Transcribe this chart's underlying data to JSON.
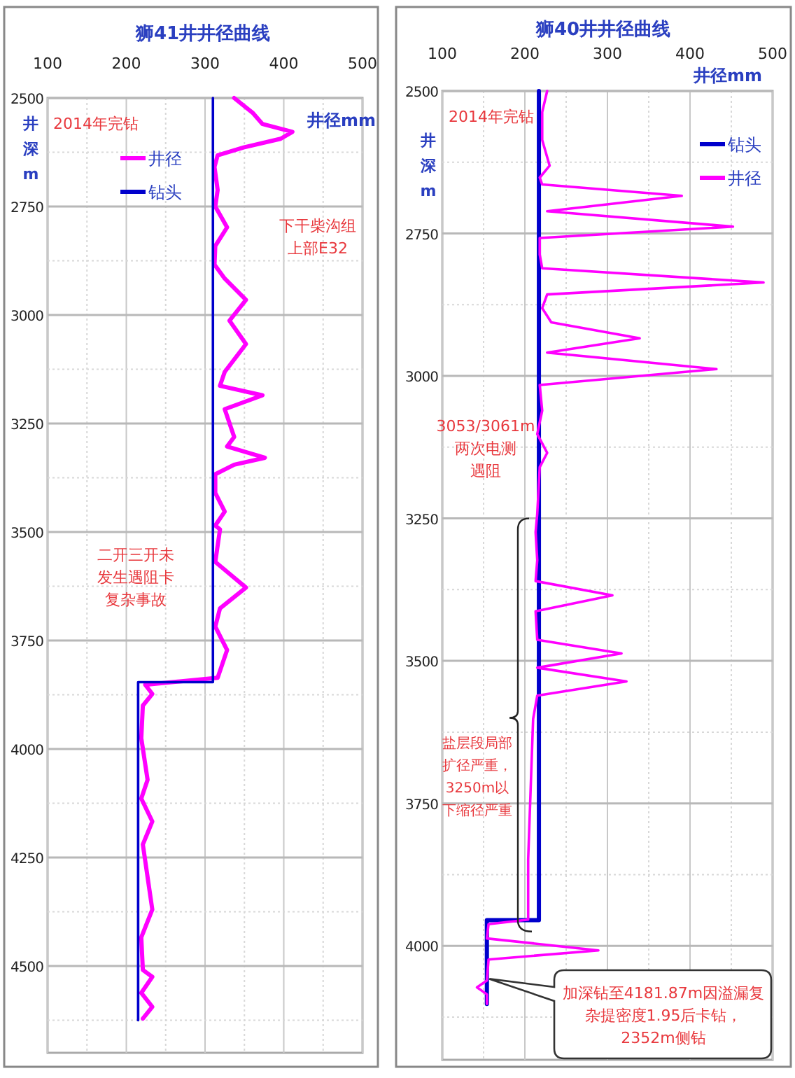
{
  "chart_data": [
    {
      "type": "line",
      "title": "狮41井井径曲线",
      "xlabel": "井径mm",
      "ylabel": "井深m",
      "xlim": [
        100,
        500
      ],
      "ylim": [
        4700,
        2500
      ],
      "xticks": [
        100,
        {
          "value": 150,
          "label": null
        },
        200,
        {
          "value": 250,
          "label": null
        },
        300,
        {
          "value": 350,
          "label": null
        },
        400,
        {
          "value": 450,
          "label": null
        },
        500
      ],
      "yticks": [
        2500,
        {
          "value": 2625,
          "label": null
        },
        2750,
        {
          "value": 2875,
          "label": null
        },
        3000,
        {
          "value": 3125,
          "label": null
        },
        3250,
        {
          "value": 3375,
          "label": null
        },
        3500,
        {
          "value": 3625,
          "label": null
        },
        3750,
        {
          "value": 3875,
          "label": null
        },
        4000,
        {
          "value": 4125,
          "label": null
        },
        4250,
        {
          "value": 4375,
          "label": null
        },
        4500,
        {
          "value": 4625,
          "label": null
        }
      ],
      "grid": true,
      "legend": "top left",
      "series": [
        {
          "name": "井径",
          "color": "#ff00ff",
          "x": [
            337,
            361,
            373,
            411,
            396,
            349,
            316,
            312,
            316,
            313,
            328,
            313,
            312,
            325,
            352,
            331,
            352,
            325,
            319,
            373,
            325,
            337,
            328,
            376,
            337,
            313,
            313,
            325,
            313,
            319,
            313,
            352,
            319,
            313,
            328,
            316,
            224,
            233,
            221,
            219,
            227,
            219,
            233,
            221,
            233,
            219,
            221,
            233,
            219,
            233,
            221
          ],
          "values": [
            2500,
            2535,
            2560,
            2578,
            2594,
            2614,
            2632,
            2659,
            2712,
            2750,
            2798,
            2841,
            2884,
            2916,
            2965,
            3013,
            3067,
            3131,
            3163,
            3185,
            3217,
            3281,
            3303,
            3329,
            3345,
            3367,
            3410,
            3453,
            3485,
            3494,
            3569,
            3628,
            3676,
            3718,
            3772,
            3836,
            3852,
            3873,
            3900,
            3975,
            4071,
            4114,
            4167,
            4220,
            4370,
            4434,
            4509,
            4525,
            4562,
            4594,
            4621
          ]
        },
        {
          "name": "钻头",
          "color": "#0000cc",
          "x": [
            310,
            310,
            215,
            215
          ],
          "values": [
            2500,
            3846,
            3846,
            4625
          ]
        }
      ],
      "annotations": [
        "2014年完钻",
        "下干柴沟组上部E32",
        "二开三开未发生遇阻卡复杂事故"
      ]
    },
    {
      "type": "line",
      "title": "狮40井井径曲线",
      "xlabel": "井径mm",
      "ylabel": "井深m",
      "xlim": [
        100,
        500
      ],
      "ylim": [
        4200,
        2500
      ],
      "xticks": [
        100,
        {
          "value": 150,
          "label": null
        },
        200,
        {
          "value": 250,
          "label": null
        },
        300,
        {
          "value": 350,
          "label": null
        },
        400,
        {
          "value": 450,
          "label": null
        },
        500
      ],
      "yticks": [
        2500,
        {
          "value": 2625,
          "label": null
        },
        2750,
        {
          "value": 2875,
          "label": null
        },
        3000,
        {
          "value": 3125,
          "label": null
        },
        3250,
        {
          "value": 3375,
          "label": null
        },
        3500,
        {
          "value": 3625,
          "label": null
        },
        3750,
        {
          "value": 3875,
          "label": null
        },
        4000,
        {
          "value": 4125,
          "label": null
        }
      ],
      "grid": true,
      "legend": "top right",
      "series": [
        {
          "name": "钻头",
          "color": "#0000cc",
          "x": [
            217,
            217,
            154,
            154
          ],
          "values": [
            2500,
            3955,
            3955,
            4102
          ]
        },
        {
          "name": "井径",
          "color": "#ff00ff",
          "x": [
            227,
            221,
            221,
            230,
            218,
            221,
            390,
            227,
            452,
            218,
            218,
            221,
            489,
            227,
            221,
            232,
            339,
            227,
            432,
            218,
            221,
            215,
            227,
            218,
            215,
            213,
            215,
            213,
            306,
            213,
            215,
            317,
            215,
            323,
            215,
            210,
            207,
            204,
            204,
            156,
            154,
            289,
            156,
            154,
            142,
            154,
            154
          ],
          "values": [
            2500,
            2537,
            2586,
            2631,
            2652,
            2664,
            2684,
            2711,
            2738,
            2758,
            2787,
            2811,
            2836,
            2857,
            2881,
            2906,
            2934,
            2959,
            2988,
            3016,
            3061,
            3102,
            3135,
            3160,
            3242,
            3274,
            3323,
            3360,
            3385,
            3413,
            3463,
            3487,
            3512,
            3536,
            3561,
            3602,
            3725,
            3848,
            3954,
            3962,
            3987,
            4008,
            4024,
            4061,
            4073,
            4085,
            4102
          ]
        }
      ],
      "annotations": [
        "2014年完钻",
        "3053/3061m两次电测遇阻",
        "盐层段局部扩径严重，3250m以下缩径严重",
        "加深钻至4181.87m因溢漏复杂提密度1.95后卡钻，2352m侧钻"
      ]
    }
  ]
}
